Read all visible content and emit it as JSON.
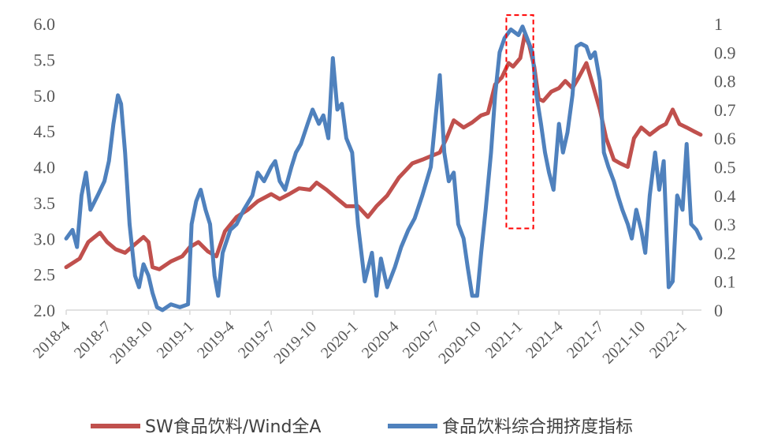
{
  "chart_data": {
    "type": "line",
    "title": "",
    "x": [
      "2018-4",
      "2018-7",
      "2018-10",
      "2019-1",
      "2019-4",
      "2019-7",
      "2019-10",
      "2020-1",
      "2020-4",
      "2020-7",
      "2020-10",
      "2021-1",
      "2021-4",
      "2021-7",
      "2021-10",
      "2022-1"
    ],
    "xlabel": "",
    "ylabel": "",
    "y_left": {
      "ticks": [
        "2.0",
        "2.5",
        "3.0",
        "3.5",
        "4.0",
        "4.5",
        "5.0",
        "5.5",
        "6.0"
      ],
      "range": [
        2.0,
        6.0
      ]
    },
    "y_right": {
      "ticks": [
        "0",
        "0.1",
        "0.2",
        "0.3",
        "0.4",
        "0.5",
        "0.6",
        "0.7",
        "0.8",
        "0.9",
        "1"
      ],
      "range": [
        0,
        1
      ]
    },
    "grid": false,
    "legend_position": "bottom",
    "series": [
      {
        "name": "SW食品饮料/Wind全A",
        "axis": "left",
        "color": "#c0504d",
        "points": [
          [
            "2018-04-01",
            2.6
          ],
          [
            "2018-05-01",
            2.72
          ],
          [
            "2018-05-20",
            2.95
          ],
          [
            "2018-06-15",
            3.08
          ],
          [
            "2018-07-01",
            2.95
          ],
          [
            "2018-07-20",
            2.85
          ],
          [
            "2018-08-10",
            2.8
          ],
          [
            "2018-09-01",
            2.92
          ],
          [
            "2018-09-20",
            3.02
          ],
          [
            "2018-10-01",
            2.95
          ],
          [
            "2018-10-10",
            2.6
          ],
          [
            "2018-10-25",
            2.57
          ],
          [
            "2018-11-20",
            2.68
          ],
          [
            "2018-12-15",
            2.75
          ],
          [
            "2019-01-01",
            2.88
          ],
          [
            "2019-01-20",
            2.95
          ],
          [
            "2019-02-10",
            2.82
          ],
          [
            "2019-03-01",
            2.75
          ],
          [
            "2019-03-20",
            3.1
          ],
          [
            "2019-04-15",
            3.3
          ],
          [
            "2019-05-10",
            3.4
          ],
          [
            "2019-06-01",
            3.52
          ],
          [
            "2019-07-01",
            3.62
          ],
          [
            "2019-07-20",
            3.55
          ],
          [
            "2019-08-10",
            3.62
          ],
          [
            "2019-09-01",
            3.7
          ],
          [
            "2019-09-25",
            3.68
          ],
          [
            "2019-10-10",
            3.78
          ],
          [
            "2019-11-01",
            3.68
          ],
          [
            "2019-11-20",
            3.58
          ],
          [
            "2019-12-15",
            3.45
          ],
          [
            "2020-01-10",
            3.45
          ],
          [
            "2020-02-01",
            3.3
          ],
          [
            "2020-02-20",
            3.45
          ],
          [
            "2020-03-15",
            3.6
          ],
          [
            "2020-04-10",
            3.85
          ],
          [
            "2020-05-10",
            4.05
          ],
          [
            "2020-06-01",
            4.1
          ],
          [
            "2020-06-20",
            4.15
          ],
          [
            "2020-07-10",
            4.2
          ],
          [
            "2020-07-25",
            4.4
          ],
          [
            "2020-08-10",
            4.65
          ],
          [
            "2020-09-01",
            4.55
          ],
          [
            "2020-09-20",
            4.62
          ],
          [
            "2020-10-10",
            4.72
          ],
          [
            "2020-10-25",
            4.75
          ],
          [
            "2020-11-10",
            5.15
          ],
          [
            "2020-11-25",
            5.25
          ],
          [
            "2020-12-10",
            5.45
          ],
          [
            "2020-12-20",
            5.4
          ],
          [
            "2021-01-05",
            5.52
          ],
          [
            "2021-01-15",
            5.85
          ],
          [
            "2021-01-25",
            5.7
          ],
          [
            "2021-02-05",
            5.4
          ],
          [
            "2021-02-15",
            4.95
          ],
          [
            "2021-02-25",
            4.92
          ],
          [
            "2021-03-15",
            5.05
          ],
          [
            "2021-04-01",
            5.1
          ],
          [
            "2021-04-15",
            5.2
          ],
          [
            "2021-05-01",
            5.1
          ],
          [
            "2021-05-15",
            5.25
          ],
          [
            "2021-06-01",
            5.45
          ],
          [
            "2021-06-15",
            5.15
          ],
          [
            "2021-07-01",
            4.8
          ],
          [
            "2021-07-15",
            4.4
          ],
          [
            "2021-08-01",
            4.1
          ],
          [
            "2021-08-15",
            4.05
          ],
          [
            "2021-09-01",
            4.0
          ],
          [
            "2021-09-15",
            4.4
          ],
          [
            "2021-10-01",
            4.55
          ],
          [
            "2021-10-20",
            4.45
          ],
          [
            "2021-11-10",
            4.55
          ],
          [
            "2021-11-25",
            4.6
          ],
          [
            "2021-12-10",
            4.8
          ],
          [
            "2021-12-25",
            4.6
          ],
          [
            "2022-01-10",
            4.55
          ],
          [
            "2022-01-25",
            4.5
          ],
          [
            "2022-02-10",
            4.45
          ]
        ]
      },
      {
        "name": "食品饮料综合拥挤度指标",
        "axis": "right",
        "color": "#4f81bd",
        "points": [
          [
            "2018-04-01",
            0.25
          ],
          [
            "2018-04-15",
            0.28
          ],
          [
            "2018-04-25",
            0.22
          ],
          [
            "2018-05-05",
            0.4
          ],
          [
            "2018-05-15",
            0.48
          ],
          [
            "2018-05-25",
            0.35
          ],
          [
            "2018-06-10",
            0.4
          ],
          [
            "2018-06-25",
            0.45
          ],
          [
            "2018-07-05",
            0.52
          ],
          [
            "2018-07-15",
            0.65
          ],
          [
            "2018-07-25",
            0.75
          ],
          [
            "2018-08-01",
            0.72
          ],
          [
            "2018-08-10",
            0.55
          ],
          [
            "2018-08-20",
            0.3
          ],
          [
            "2018-09-01",
            0.12
          ],
          [
            "2018-09-10",
            0.08
          ],
          [
            "2018-09-20",
            0.16
          ],
          [
            "2018-10-01",
            0.12
          ],
          [
            "2018-10-10",
            0.06
          ],
          [
            "2018-10-20",
            0.01
          ],
          [
            "2018-11-01",
            0.0
          ],
          [
            "2018-11-20",
            0.02
          ],
          [
            "2018-12-10",
            0.01
          ],
          [
            "2018-12-28",
            0.02
          ],
          [
            "2019-01-05",
            0.3
          ],
          [
            "2019-01-15",
            0.38
          ],
          [
            "2019-01-25",
            0.42
          ],
          [
            "2019-02-05",
            0.35
          ],
          [
            "2019-02-15",
            0.3
          ],
          [
            "2019-02-25",
            0.12
          ],
          [
            "2019-03-05",
            0.05
          ],
          [
            "2019-03-15",
            0.2
          ],
          [
            "2019-04-01",
            0.28
          ],
          [
            "2019-04-15",
            0.3
          ],
          [
            "2019-05-01",
            0.35
          ],
          [
            "2019-05-20",
            0.4
          ],
          [
            "2019-06-01",
            0.48
          ],
          [
            "2019-06-15",
            0.45
          ],
          [
            "2019-07-01",
            0.5
          ],
          [
            "2019-07-10",
            0.52
          ],
          [
            "2019-07-20",
            0.45
          ],
          [
            "2019-08-01",
            0.42
          ],
          [
            "2019-08-15",
            0.5
          ],
          [
            "2019-08-25",
            0.55
          ],
          [
            "2019-09-05",
            0.58
          ],
          [
            "2019-09-20",
            0.65
          ],
          [
            "2019-10-01",
            0.7
          ],
          [
            "2019-10-15",
            0.65
          ],
          [
            "2019-10-25",
            0.68
          ],
          [
            "2019-11-05",
            0.6
          ],
          [
            "2019-11-15",
            0.88
          ],
          [
            "2019-11-25",
            0.7
          ],
          [
            "2019-12-05",
            0.72
          ],
          [
            "2019-12-15",
            0.6
          ],
          [
            "2019-12-28",
            0.55
          ],
          [
            "2020-01-10",
            0.3
          ],
          [
            "2020-01-25",
            0.1
          ],
          [
            "2020-02-10",
            0.2
          ],
          [
            "2020-02-20",
            0.05
          ],
          [
            "2020-03-01",
            0.18
          ],
          [
            "2020-03-15",
            0.08
          ],
          [
            "2020-04-01",
            0.15
          ],
          [
            "2020-04-15",
            0.22
          ],
          [
            "2020-05-01",
            0.28
          ],
          [
            "2020-05-15",
            0.32
          ],
          [
            "2020-06-01",
            0.4
          ],
          [
            "2020-06-20",
            0.5
          ],
          [
            "2020-07-01",
            0.68
          ],
          [
            "2020-07-10",
            0.82
          ],
          [
            "2020-07-20",
            0.55
          ],
          [
            "2020-07-30",
            0.45
          ],
          [
            "2020-08-10",
            0.48
          ],
          [
            "2020-08-20",
            0.3
          ],
          [
            "2020-09-01",
            0.25
          ],
          [
            "2020-09-10",
            0.15
          ],
          [
            "2020-09-20",
            0.05
          ],
          [
            "2020-10-01",
            0.05
          ],
          [
            "2020-10-10",
            0.2
          ],
          [
            "2020-10-20",
            0.35
          ],
          [
            "2020-11-01",
            0.55
          ],
          [
            "2020-11-10",
            0.75
          ],
          [
            "2020-11-20",
            0.9
          ],
          [
            "2020-12-01",
            0.95
          ],
          [
            "2020-12-15",
            0.98
          ],
          [
            "2021-01-01",
            0.96
          ],
          [
            "2021-01-10",
            0.99
          ],
          [
            "2021-01-20",
            0.95
          ],
          [
            "2021-02-01",
            0.9
          ],
          [
            "2021-02-10",
            0.75
          ],
          [
            "2021-02-20",
            0.65
          ],
          [
            "2021-03-01",
            0.55
          ],
          [
            "2021-03-10",
            0.48
          ],
          [
            "2021-03-20",
            0.42
          ],
          [
            "2021-04-01",
            0.65
          ],
          [
            "2021-04-10",
            0.55
          ],
          [
            "2021-04-20",
            0.62
          ],
          [
            "2021-05-01",
            0.75
          ],
          [
            "2021-05-10",
            0.92
          ],
          [
            "2021-05-20",
            0.93
          ],
          [
            "2021-06-01",
            0.92
          ],
          [
            "2021-06-10",
            0.88
          ],
          [
            "2021-06-20",
            0.9
          ],
          [
            "2021-07-01",
            0.8
          ],
          [
            "2021-07-10",
            0.55
          ],
          [
            "2021-07-20",
            0.5
          ],
          [
            "2021-08-01",
            0.45
          ],
          [
            "2021-08-10",
            0.4
          ],
          [
            "2021-08-20",
            0.35
          ],
          [
            "2021-09-01",
            0.3
          ],
          [
            "2021-09-10",
            0.25
          ],
          [
            "2021-09-20",
            0.35
          ],
          [
            "2021-10-01",
            0.28
          ],
          [
            "2021-10-10",
            0.2
          ],
          [
            "2021-10-20",
            0.4
          ],
          [
            "2021-11-01",
            0.55
          ],
          [
            "2021-11-10",
            0.42
          ],
          [
            "2021-11-20",
            0.52
          ],
          [
            "2021-12-01",
            0.08
          ],
          [
            "2021-12-10",
            0.1
          ],
          [
            "2021-12-20",
            0.4
          ],
          [
            "2022-01-01",
            0.35
          ],
          [
            "2022-01-10",
            0.58
          ],
          [
            "2022-01-20",
            0.3
          ],
          [
            "2022-02-01",
            0.28
          ],
          [
            "2022-02-10",
            0.25
          ]
        ]
      }
    ]
  },
  "annotation": {
    "type": "dashed-rectangle",
    "color": "#ff0000",
    "x_from": "2020-12-05",
    "x_to": "2021-02-03",
    "y_right_from": 0.285,
    "y_right_to": 1.03
  },
  "legend": {
    "items": [
      {
        "label": "SW食品饮料/Wind全A",
        "color": "#c0504d"
      },
      {
        "label": "食品饮料综合拥挤度指标",
        "color": "#4f81bd"
      }
    ]
  }
}
